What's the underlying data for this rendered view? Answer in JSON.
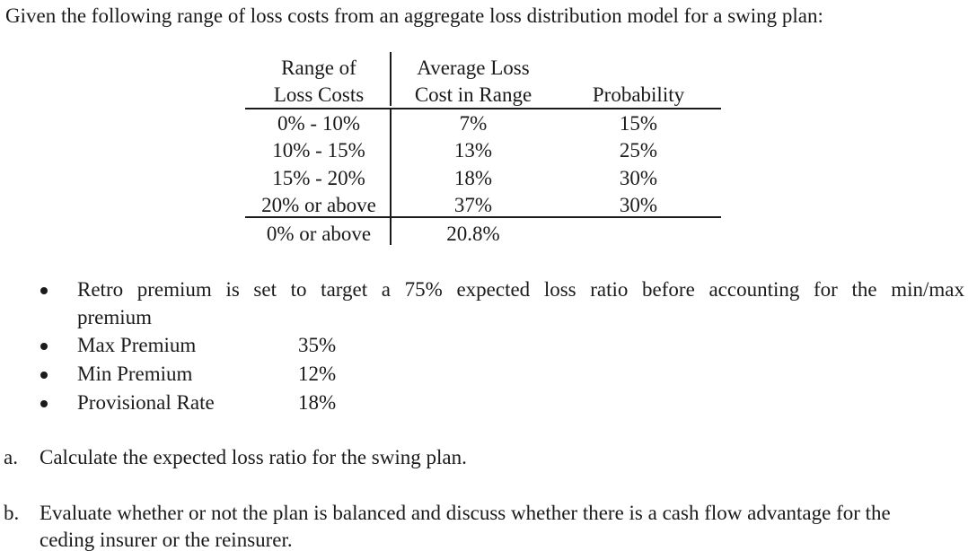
{
  "intro": "Given the following range of loss costs from an aggregate loss distribution model for a swing plan:",
  "table": {
    "headers": [
      {
        "line1": "Range of",
        "line2": "Loss Costs"
      },
      {
        "line1": "Average Loss",
        "line2": "Cost in Range"
      },
      {
        "line1": "",
        "line2": "Probability"
      }
    ],
    "rows": [
      {
        "range": "0% - 10%",
        "avg": "7%",
        "prob": "15%"
      },
      {
        "range": "10% - 15%",
        "avg": "13%",
        "prob": "25%"
      },
      {
        "range": "15% - 20%",
        "avg": "18%",
        "prob": "30%"
      },
      {
        "range": "20% or above",
        "avg": "37%",
        "prob": "30%"
      }
    ],
    "total": {
      "range": "0% or above",
      "avg": "20.8%",
      "prob": ""
    }
  },
  "bullets": [
    {
      "line1": "Retro premium is set to target a 75% expected loss ratio before accounting for the min/max",
      "line2": "premium"
    },
    {
      "label": "Max Premium",
      "value": "35%"
    },
    {
      "label": "Min Premium",
      "value": "12%"
    },
    {
      "label": "Provisional Rate",
      "value": "18%"
    }
  ],
  "questions": [
    {
      "marker": "a.",
      "line1": "Calculate the expected loss ratio for the swing plan.",
      "line2": ""
    },
    {
      "marker": "b.",
      "line1": "Evaluate whether or not the plan is balanced and discuss whether there is a cash flow advantage for the",
      "line2": "ceding insurer or the reinsurer."
    }
  ]
}
